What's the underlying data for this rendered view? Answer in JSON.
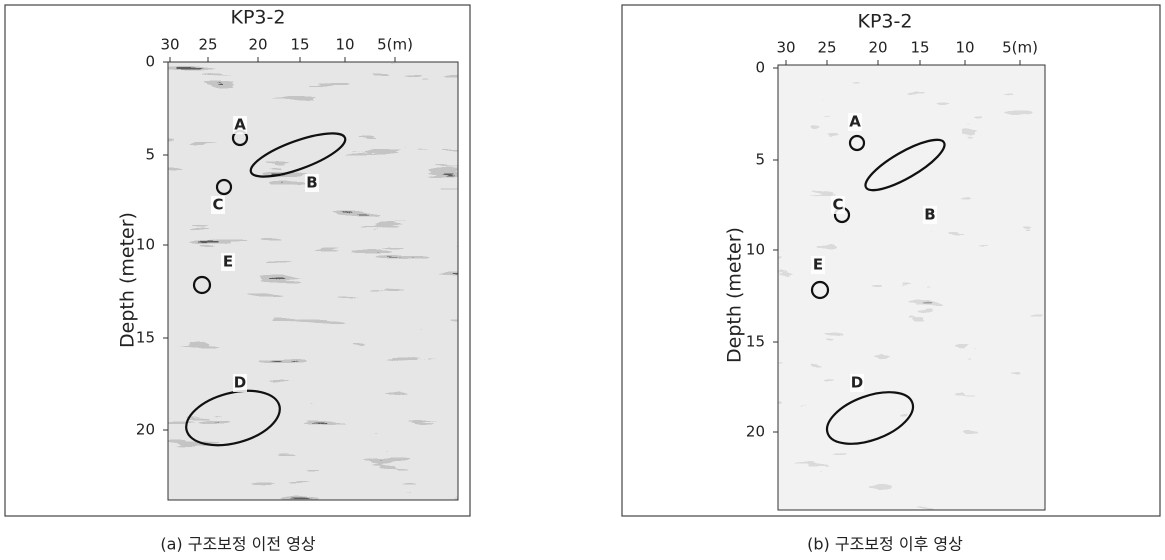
{
  "panels": [
    {
      "title": "KP3-2",
      "x_ticks": [
        "30",
        "25",
        "20",
        "15",
        "10",
        "5(m)"
      ],
      "y_ticks": [
        "0",
        "5",
        "10",
        "15",
        "20"
      ],
      "y_label": "Depth (meter)",
      "annotations": [
        "A",
        "B",
        "C",
        "E",
        "D"
      ],
      "caption": "(a) 구조보정 이전 영상"
    },
    {
      "title": "KP3-2",
      "x_ticks": [
        "30",
        "25",
        "20",
        "15",
        "10",
        "5(m)"
      ],
      "y_ticks": [
        "0",
        "5",
        "10",
        "15",
        "20"
      ],
      "y_label": "Depth (meter)",
      "annotations": [
        "A",
        "B",
        "C",
        "E",
        "D"
      ],
      "caption": "(b) 구조보정 이후 영상"
    }
  ]
}
